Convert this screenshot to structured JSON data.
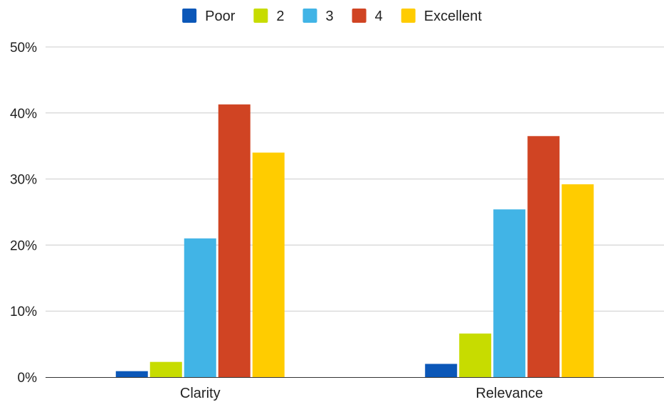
{
  "chart_data": {
    "type": "bar",
    "categories": [
      "Clarity",
      "Relevance"
    ],
    "series": [
      {
        "name": "Poor",
        "values": [
          0.9,
          2.0
        ],
        "color": "#0b57b8"
      },
      {
        "name": "2",
        "values": [
          2.3,
          6.6
        ],
        "color": "#c7dc00"
      },
      {
        "name": "3",
        "values": [
          21.0,
          25.4
        ],
        "color": "#41b4e6"
      },
      {
        "name": "4",
        "values": [
          41.3,
          36.5
        ],
        "color": "#d04423"
      },
      {
        "name": "Excellent",
        "values": [
          34.0,
          29.2
        ],
        "color": "#ffcc00"
      }
    ],
    "yticks": [
      "0%",
      "10%",
      "20%",
      "30%",
      "40%",
      "50%"
    ],
    "ylim": [
      0,
      50
    ],
    "grid": true,
    "legend": "top-center",
    "title": "",
    "xlabel": "",
    "ylabel": ""
  }
}
